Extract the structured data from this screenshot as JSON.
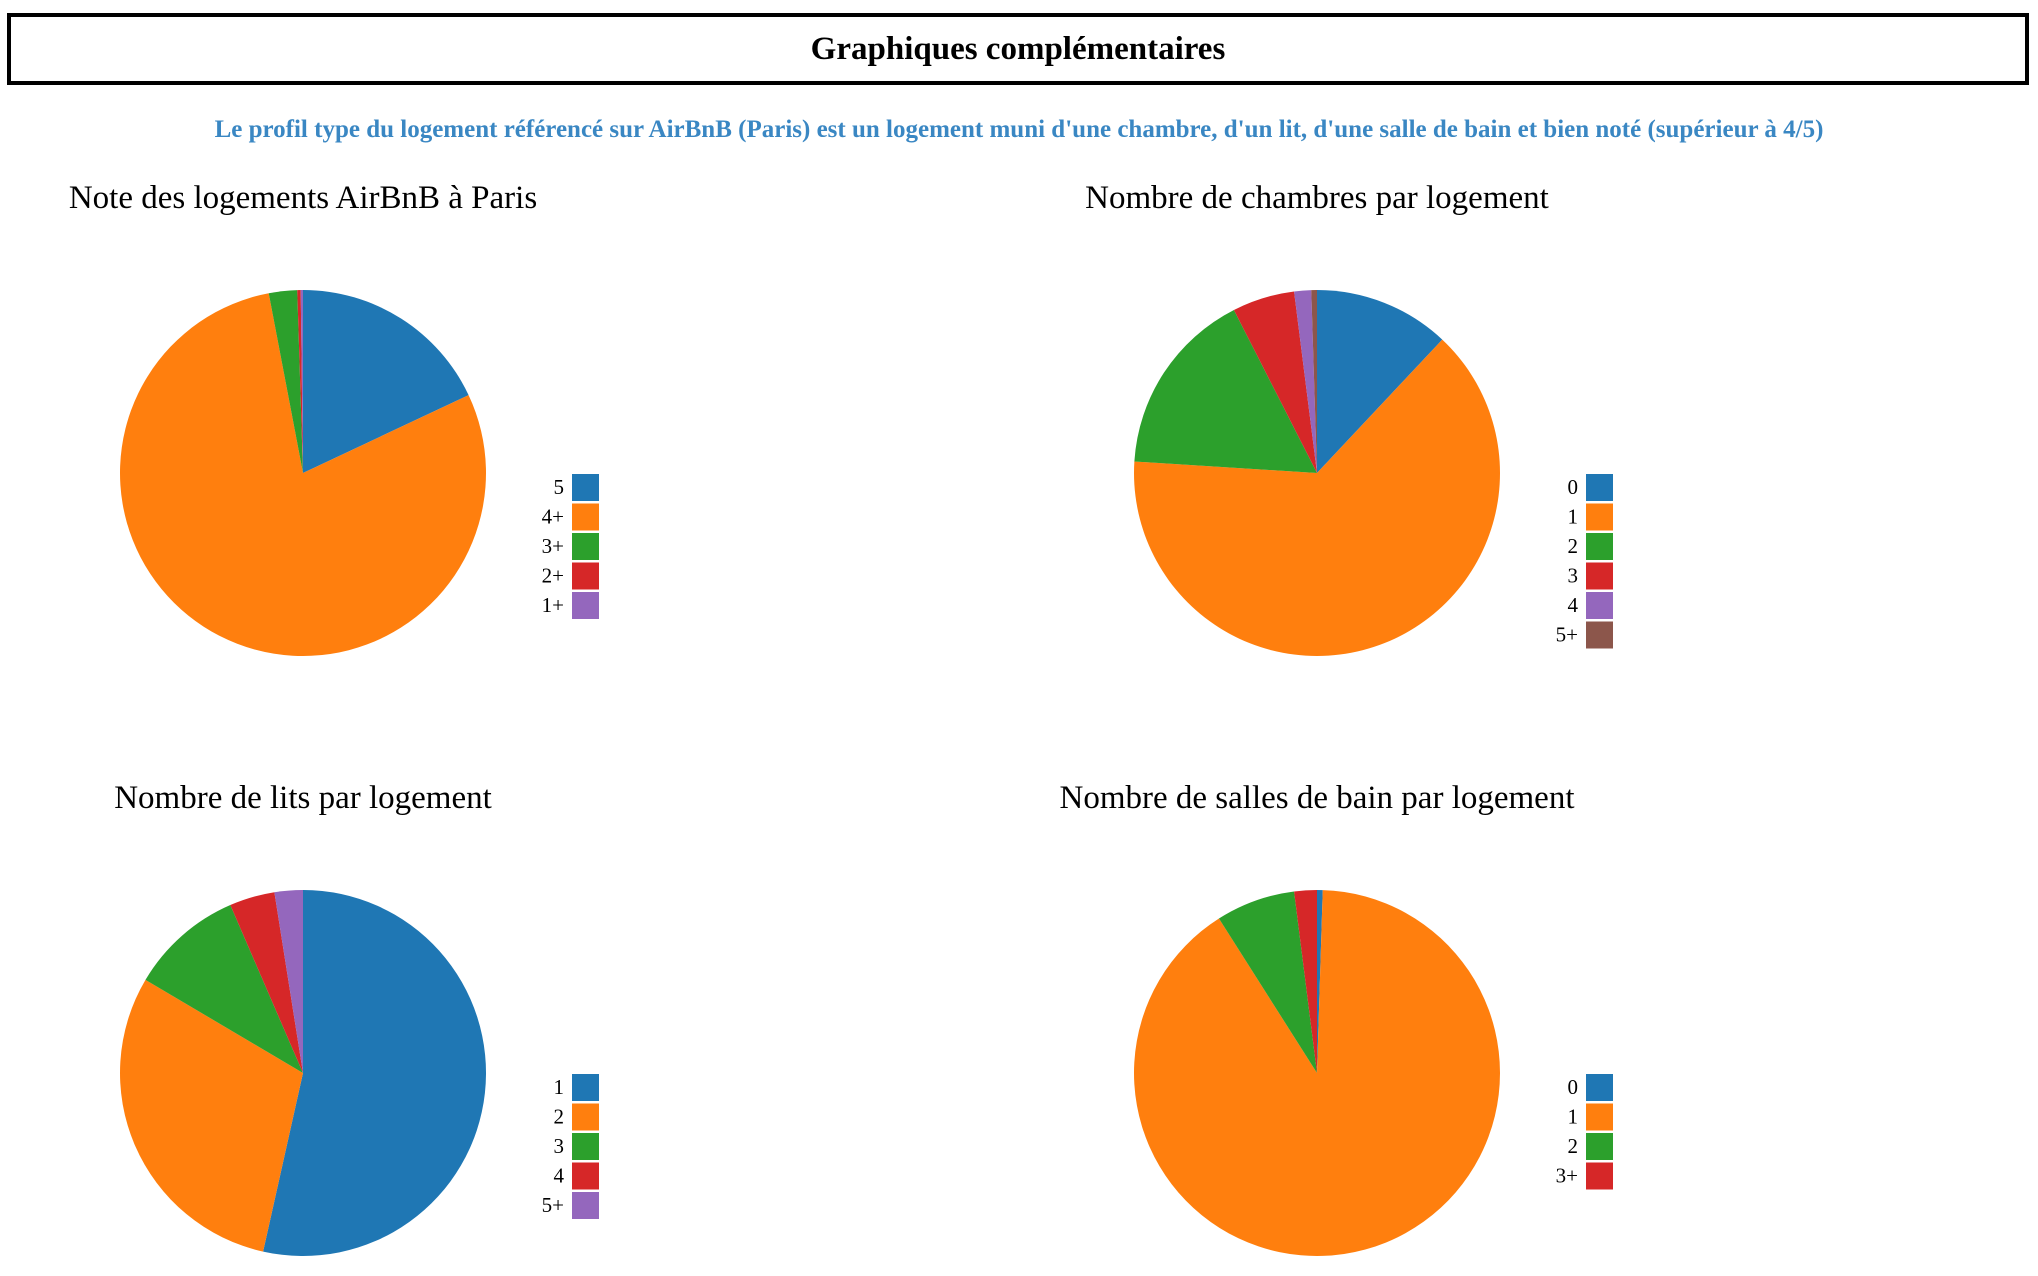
{
  "header": {
    "title": "Graphiques complémentaires"
  },
  "subtitle": "Le profil type du logement référencé sur AirBnB (Paris) est un logement muni d'une chambre, d'un lit, d'une salle de bain et bien noté (supérieur à 4/5)",
  "colors": {
    "blue": "#1f77b4",
    "orange": "#ff7f0e",
    "green": "#2ca02c",
    "red": "#d62728",
    "purple": "#9467bd",
    "brown": "#8c564b",
    "subtitle": "#3a87c3"
  },
  "chart_data": [
    {
      "type": "pie",
      "title": "Note des logements AirBnB à Paris",
      "categories": [
        "5",
        "4+",
        "3+",
        "2+",
        "1+"
      ],
      "values": [
        18,
        79,
        2.5,
        0.3,
        0.2
      ],
      "colors": [
        "#1f77b4",
        "#ff7f0e",
        "#2ca02c",
        "#d62728",
        "#9467bd"
      ],
      "legend": "right"
    },
    {
      "type": "pie",
      "title": "Nombre de chambres par logement",
      "categories": [
        "0",
        "1",
        "2",
        "3",
        "4",
        "5+"
      ],
      "values": [
        12,
        64,
        16.5,
        5.5,
        1.5,
        0.5
      ],
      "colors": [
        "#1f77b4",
        "#ff7f0e",
        "#2ca02c",
        "#d62728",
        "#9467bd",
        "#8c564b"
      ],
      "legend": "right"
    },
    {
      "type": "pie",
      "title": "Nombre de lits par logement",
      "categories": [
        "1",
        "2",
        "3",
        "4",
        "5+"
      ],
      "values": [
        53.5,
        30,
        10,
        4,
        2.5
      ],
      "colors": [
        "#1f77b4",
        "#ff7f0e",
        "#2ca02c",
        "#d62728",
        "#9467bd"
      ],
      "legend": "right"
    },
    {
      "type": "pie",
      "title": "Nombre de salles de bain par logement",
      "categories": [
        "0",
        "1",
        "2",
        "3+"
      ],
      "values": [
        0.5,
        90.5,
        7,
        2
      ],
      "colors": [
        "#1f77b4",
        "#ff7f0e",
        "#2ca02c",
        "#d62728"
      ],
      "legend": "right"
    }
  ]
}
